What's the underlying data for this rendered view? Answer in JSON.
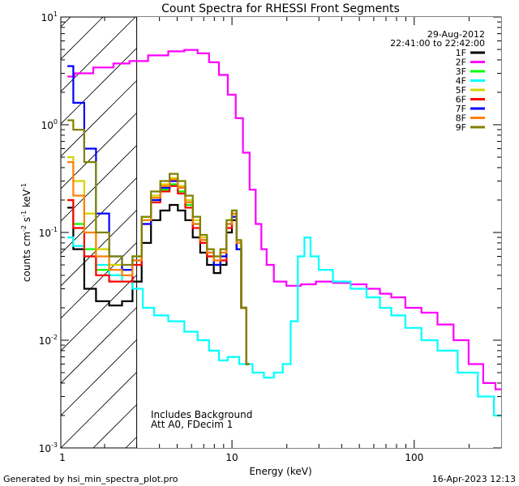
{
  "chart_data": {
    "type": "line",
    "title": "Count Spectra for RHESSI Front Segments",
    "xlabel": "Energy (keV)",
    "ylabel_parts": [
      "counts cm",
      "-2",
      " s",
      "-1",
      " keV",
      "-1"
    ],
    "xscale": "log",
    "yscale": "log",
    "xlim": [
      1.15,
      300
    ],
    "ylim": [
      0.001,
      10
    ],
    "x_ticks": [
      {
        "value": 1,
        "label": "1"
      },
      {
        "value": 10,
        "label": "10"
      },
      {
        "value": 100,
        "label": "100"
      }
    ],
    "y_ticks": [
      {
        "value": 0.001,
        "base": "10",
        "exp": "-3"
      },
      {
        "value": 0.01,
        "base": "10",
        "exp": "-2"
      },
      {
        "value": 0.1,
        "base": "10",
        "exp": "-1"
      },
      {
        "value": 1,
        "base": "10",
        "exp": "0"
      },
      {
        "value": 10,
        "base": "10",
        "exp": "1"
      }
    ],
    "date": "29-Aug-2012",
    "time_range": "22:41:00 to 22:42:00",
    "note_lines": [
      "Includes Background",
      "Att A0, FDecim 1"
    ],
    "hatched_region": {
      "x_from": 1.15,
      "x_to": 3.0
    },
    "series": [
      {
        "name": "1F",
        "color": "#000000",
        "points": [
          [
            1.25,
            0.17
          ],
          [
            1.45,
            0.07
          ],
          [
            1.65,
            0.03
          ],
          [
            1.95,
            0.023
          ],
          [
            2.3,
            0.021
          ],
          [
            2.7,
            0.023
          ],
          [
            3.0,
            0.035
          ],
          [
            3.4,
            0.08
          ],
          [
            3.8,
            0.13
          ],
          [
            4.3,
            0.16
          ],
          [
            4.8,
            0.18
          ],
          [
            5.3,
            0.16
          ],
          [
            5.8,
            0.13
          ],
          [
            6.4,
            0.09
          ],
          [
            7.0,
            0.065
          ],
          [
            7.6,
            0.05
          ],
          [
            8.3,
            0.042
          ],
          [
            9.0,
            0.05
          ],
          [
            9.7,
            0.1
          ],
          [
            10.3,
            0.13
          ],
          [
            10.9,
            0.07
          ],
          [
            11.6,
            0.02
          ],
          [
            12.4,
            0.006
          ]
        ]
      },
      {
        "name": "2F",
        "color": "#ff00ff",
        "points": [
          [
            1.25,
            2.8
          ],
          [
            1.5,
            3.0
          ],
          [
            2.0,
            3.4
          ],
          [
            2.5,
            3.7
          ],
          [
            3.0,
            3.9
          ],
          [
            4.0,
            4.4
          ],
          [
            5.0,
            4.8
          ],
          [
            6.0,
            4.95
          ],
          [
            7.0,
            4.6
          ],
          [
            8.0,
            3.8
          ],
          [
            9.0,
            2.9
          ],
          [
            10.0,
            1.9
          ],
          [
            11.0,
            1.15
          ],
          [
            12.0,
            0.55
          ],
          [
            13.0,
            0.25
          ],
          [
            14.0,
            0.12
          ],
          [
            15.0,
            0.07
          ],
          [
            16.0,
            0.05
          ],
          [
            18.0,
            0.035
          ],
          [
            22.0,
            0.032
          ],
          [
            26.0,
            0.033
          ],
          [
            32.0,
            0.035
          ],
          [
            40.0,
            0.034
          ],
          [
            50.0,
            0.033
          ],
          [
            60.0,
            0.03
          ],
          [
            70.0,
            0.027
          ],
          [
            80.0,
            0.025
          ],
          [
            100.0,
            0.02
          ],
          [
            120.0,
            0.018
          ],
          [
            150.0,
            0.014
          ],
          [
            180.0,
            0.01
          ],
          [
            220.0,
            0.006
          ],
          [
            260.0,
            0.004
          ],
          [
            300.0,
            0.0035
          ]
        ]
      },
      {
        "name": "3F",
        "color": "#00ff00",
        "points": [
          [
            1.25,
            0.2
          ],
          [
            1.45,
            0.12
          ],
          [
            1.65,
            0.07
          ],
          [
            1.95,
            0.045
          ],
          [
            2.3,
            0.04
          ],
          [
            2.7,
            0.045
          ],
          [
            3.0,
            0.06
          ],
          [
            3.4,
            0.13
          ],
          [
            3.8,
            0.2
          ],
          [
            4.3,
            0.25
          ],
          [
            4.8,
            0.28
          ],
          [
            5.3,
            0.24
          ],
          [
            5.8,
            0.18
          ],
          [
            6.4,
            0.12
          ],
          [
            7.0,
            0.08
          ],
          [
            7.6,
            0.06
          ],
          [
            8.3,
            0.05
          ],
          [
            9.0,
            0.06
          ],
          [
            9.7,
            0.12
          ],
          [
            10.3,
            0.16
          ],
          [
            10.9,
            0.08
          ],
          [
            11.6,
            0.02
          ],
          [
            12.4,
            0.006
          ]
        ]
      },
      {
        "name": "4F",
        "color": "#00ffff",
        "points": [
          [
            1.25,
            0.09
          ],
          [
            1.45,
            0.075
          ],
          [
            1.65,
            0.06
          ],
          [
            1.95,
            0.05
          ],
          [
            2.3,
            0.04
          ],
          [
            2.7,
            0.035
          ],
          [
            3.0,
            0.03
          ],
          [
            3.5,
            0.02
          ],
          [
            4.0,
            0.017
          ],
          [
            5.0,
            0.015
          ],
          [
            6.0,
            0.012
          ],
          [
            7.0,
            0.01
          ],
          [
            8.0,
            0.008
          ],
          [
            9.0,
            0.0065
          ],
          [
            10.0,
            0.007
          ],
          [
            12.0,
            0.006
          ],
          [
            14.0,
            0.005
          ],
          [
            16.0,
            0.0045
          ],
          [
            18.0,
            0.005
          ],
          [
            20.0,
            0.006
          ],
          [
            22.0,
            0.015
          ],
          [
            24.0,
            0.06
          ],
          [
            26.0,
            0.09
          ],
          [
            28.0,
            0.06
          ],
          [
            32.0,
            0.045
          ],
          [
            40.0,
            0.035
          ],
          [
            50.0,
            0.03
          ],
          [
            60.0,
            0.025
          ],
          [
            70.0,
            0.02
          ],
          [
            80.0,
            0.017
          ],
          [
            100.0,
            0.013
          ],
          [
            120.0,
            0.01
          ],
          [
            150.0,
            0.008
          ],
          [
            200.0,
            0.005
          ],
          [
            250.0,
            0.003
          ],
          [
            300.0,
            0.002
          ]
        ]
      },
      {
        "name": "5F",
        "color": "#d4d400",
        "points": [
          [
            1.25,
            0.5
          ],
          [
            1.45,
            0.3
          ],
          [
            1.65,
            0.15
          ],
          [
            1.95,
            0.07
          ],
          [
            2.3,
            0.05
          ],
          [
            2.7,
            0.045
          ],
          [
            3.0,
            0.06
          ],
          [
            3.4,
            0.14
          ],
          [
            3.8,
            0.22
          ],
          [
            4.3,
            0.28
          ],
          [
            4.8,
            0.32
          ],
          [
            5.3,
            0.27
          ],
          [
            5.8,
            0.2
          ],
          [
            6.4,
            0.13
          ],
          [
            7.0,
            0.09
          ],
          [
            7.6,
            0.07
          ],
          [
            8.3,
            0.06
          ],
          [
            9.0,
            0.07
          ],
          [
            9.7,
            0.13
          ],
          [
            10.3,
            0.15
          ],
          [
            10.9,
            0.08
          ],
          [
            11.6,
            0.02
          ],
          [
            12.4,
            0.006
          ]
        ]
      },
      {
        "name": "6F",
        "color": "#ff0000",
        "points": [
          [
            1.25,
            0.2
          ],
          [
            1.45,
            0.11
          ],
          [
            1.65,
            0.06
          ],
          [
            1.95,
            0.04
          ],
          [
            2.3,
            0.035
          ],
          [
            2.7,
            0.035
          ],
          [
            3.0,
            0.05
          ],
          [
            3.4,
            0.12
          ],
          [
            3.8,
            0.19
          ],
          [
            4.3,
            0.24
          ],
          [
            4.8,
            0.27
          ],
          [
            5.3,
            0.23
          ],
          [
            5.8,
            0.17
          ],
          [
            6.4,
            0.11
          ],
          [
            7.0,
            0.08
          ],
          [
            7.6,
            0.06
          ],
          [
            8.3,
            0.05
          ],
          [
            9.0,
            0.055
          ],
          [
            9.7,
            0.11
          ],
          [
            10.3,
            0.15
          ],
          [
            10.9,
            0.08
          ],
          [
            11.6,
            0.02
          ],
          [
            12.4,
            0.006
          ]
        ]
      },
      {
        "name": "7F",
        "color": "#0000ff",
        "points": [
          [
            1.25,
            3.5
          ],
          [
            1.45,
            1.6
          ],
          [
            1.65,
            0.6
          ],
          [
            1.95,
            0.15
          ],
          [
            2.3,
            0.06
          ],
          [
            2.7,
            0.045
          ],
          [
            3.0,
            0.055
          ],
          [
            3.4,
            0.12
          ],
          [
            3.8,
            0.2
          ],
          [
            4.3,
            0.26
          ],
          [
            4.8,
            0.3
          ],
          [
            5.3,
            0.26
          ],
          [
            5.8,
            0.19
          ],
          [
            6.4,
            0.12
          ],
          [
            7.0,
            0.085
          ],
          [
            7.6,
            0.065
          ],
          [
            8.3,
            0.05
          ],
          [
            9.0,
            0.06
          ],
          [
            9.7,
            0.12
          ],
          [
            10.3,
            0.14
          ],
          [
            10.9,
            0.07
          ],
          [
            11.6,
            0.02
          ],
          [
            12.4,
            0.006
          ]
        ]
      },
      {
        "name": "8F",
        "color": "#ff8000",
        "points": [
          [
            1.25,
            0.45
          ],
          [
            1.45,
            0.22
          ],
          [
            1.65,
            0.1
          ],
          [
            1.95,
            0.06
          ],
          [
            2.3,
            0.045
          ],
          [
            2.7,
            0.04
          ],
          [
            3.0,
            0.055
          ],
          [
            3.4,
            0.13
          ],
          [
            3.8,
            0.21
          ],
          [
            4.3,
            0.27
          ],
          [
            4.8,
            0.31
          ],
          [
            5.3,
            0.26
          ],
          [
            5.8,
            0.19
          ],
          [
            6.4,
            0.12
          ],
          [
            7.0,
            0.085
          ],
          [
            7.6,
            0.065
          ],
          [
            8.3,
            0.055
          ],
          [
            9.0,
            0.065
          ],
          [
            9.7,
            0.12
          ],
          [
            10.3,
            0.15
          ],
          [
            10.9,
            0.08
          ],
          [
            11.6,
            0.02
          ],
          [
            12.4,
            0.006
          ]
        ]
      },
      {
        "name": "9F",
        "color": "#808000",
        "points": [
          [
            1.25,
            1.1
          ],
          [
            1.45,
            0.9
          ],
          [
            1.65,
            0.45
          ],
          [
            1.95,
            0.1
          ],
          [
            2.3,
            0.06
          ],
          [
            2.7,
            0.05
          ],
          [
            3.0,
            0.06
          ],
          [
            3.4,
            0.14
          ],
          [
            3.8,
            0.24
          ],
          [
            4.3,
            0.3
          ],
          [
            4.8,
            0.35
          ],
          [
            5.3,
            0.3
          ],
          [
            5.8,
            0.22
          ],
          [
            6.4,
            0.14
          ],
          [
            7.0,
            0.095
          ],
          [
            7.6,
            0.07
          ],
          [
            8.3,
            0.06
          ],
          [
            9.0,
            0.07
          ],
          [
            9.7,
            0.13
          ],
          [
            10.3,
            0.16
          ],
          [
            10.9,
            0.085
          ],
          [
            11.6,
            0.02
          ],
          [
            12.4,
            0.006
          ]
        ]
      }
    ]
  },
  "footer": {
    "generated_by": "Generated by hsi_min_spectra_plot.pro",
    "timestamp": "16-Apr-2023 12:13"
  }
}
